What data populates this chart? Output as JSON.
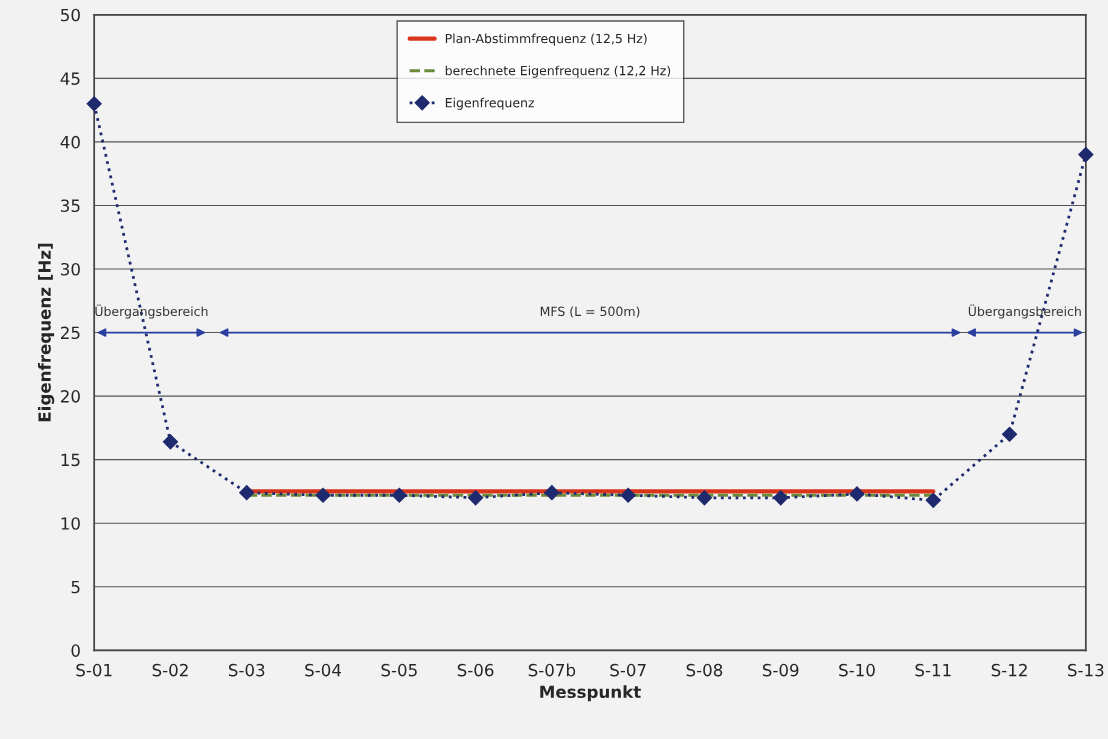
{
  "chart_data": {
    "type": "line",
    "xlabel": "Messpunkt",
    "ylabel": "Eigenfrequenz [Hz]",
    "categories": [
      "S-01",
      "S-02",
      "S-03",
      "S-04",
      "S-05",
      "S-06",
      "S-07b",
      "S-07",
      "S-08",
      "S-09",
      "S-10",
      "S-11",
      "S-12",
      "S-13"
    ],
    "series": [
      {
        "name": "Plan-Abstimmfrequenz (12,5 Hz)",
        "color": "#d9341c",
        "line_style": "solid",
        "marker": "none",
        "values": [
          null,
          null,
          12.5,
          12.5,
          12.5,
          12.5,
          12.5,
          12.5,
          12.5,
          12.5,
          12.5,
          12.5,
          null,
          null
        ]
      },
      {
        "name": "berechnete Eigenfrequenz (12,2 Hz)",
        "color": "#6b8a3a",
        "line_style": "dashed",
        "marker": "none",
        "values": [
          null,
          null,
          12.2,
          12.2,
          12.2,
          12.2,
          12.2,
          12.2,
          12.2,
          12.2,
          12.2,
          12.2,
          null,
          null
        ]
      },
      {
        "name": "Eigenfrequenz",
        "color": "#1f2a6e",
        "line_style": "dotted",
        "marker": "diamond",
        "values": [
          43,
          16.4,
          12.4,
          12.2,
          12.2,
          12.0,
          12.4,
          12.2,
          12.0,
          12.0,
          12.3,
          11.8,
          17.0,
          39.0
        ]
      }
    ],
    "annotations": [
      "Übergangsbereich",
      "MFS (L = 500m)",
      "Übergangsbereich"
    ],
    "ylim": [
      0,
      50
    ],
    "yticks": [
      0,
      5,
      10,
      15,
      20,
      25,
      30,
      35,
      40,
      45,
      50
    ],
    "grid": "y",
    "legend": "top"
  }
}
